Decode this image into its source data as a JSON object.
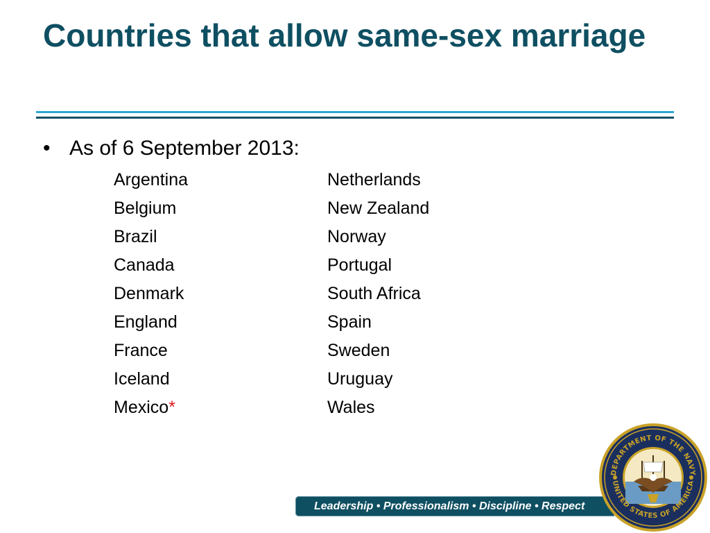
{
  "slide": {
    "title": "Countries that allow same-sex marriage",
    "bullet_marker": "•",
    "bullet": "As of 6 September 2013:",
    "left_column": [
      "Argentina",
      "Belgium",
      "Brazil",
      "Canada",
      "Denmark",
      "England",
      "France",
      "Iceland",
      "Mexico"
    ],
    "asterisk": "*",
    "right_column": [
      "Netherlands",
      "New Zealand",
      "Norway",
      "Portugal",
      "South Africa",
      "Spain",
      "Sweden",
      "Uruguay",
      "Wales"
    ]
  },
  "footer": {
    "motto": "Leadership • Professionalism • Discipline • Respect"
  },
  "seal": {
    "top_text": "DEPARTMENT OF THE NAVY",
    "bottom_text": "UNITED STATES OF AMERICA"
  },
  "colors": {
    "title": "#0f4f62",
    "rule_light": "#2ea7d6",
    "rule_dark": "#0f4f62",
    "asterisk": "#e0191e",
    "footer_bar": "#0f4f62"
  }
}
